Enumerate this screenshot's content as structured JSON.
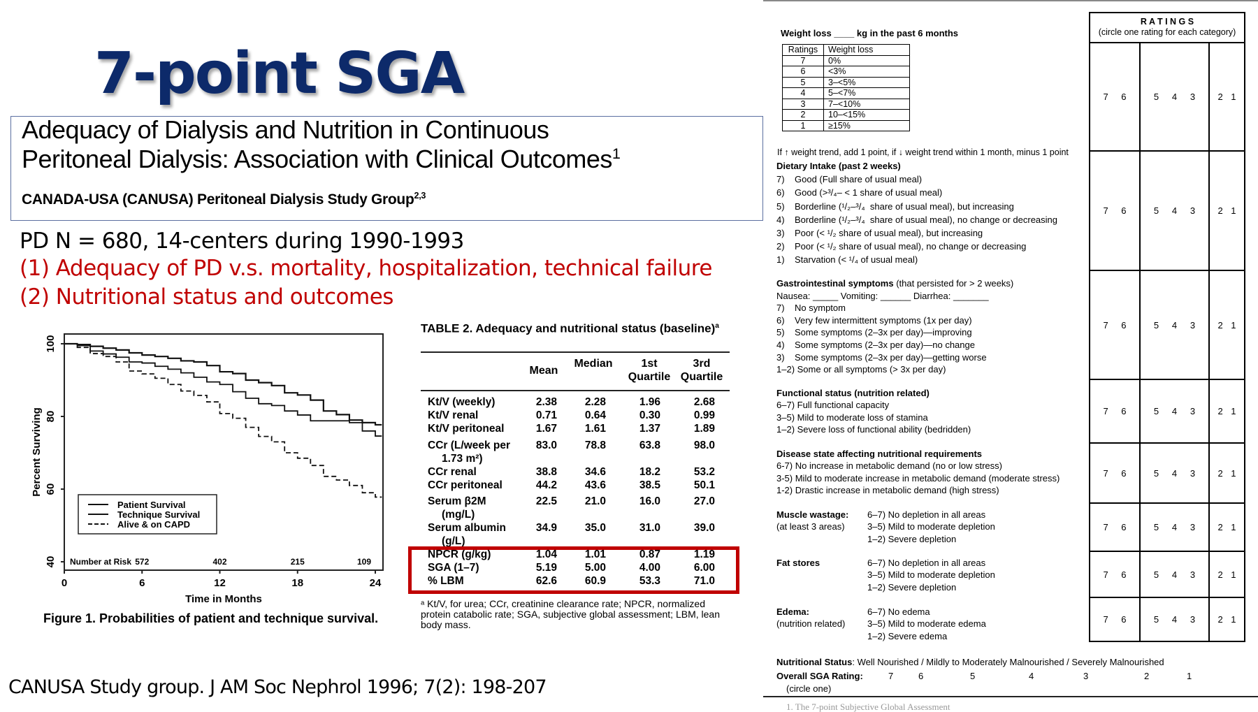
{
  "slide_title": "7-point SGA",
  "paper": {
    "title_line1": "Adequacy of Dialysis and Nutrition in Continuous",
    "title_line2": "Peritoneal Dialysis: Association with Clinical Outcomes",
    "title_sup": "1",
    "authors": "CANADA-USA (CANUSA) Peritoneal Dialysis Study Group",
    "authors_sup": "2,3"
  },
  "bullets": {
    "study": "PD N = 680, 14-centers during 1990-1993",
    "aim1": "(1)  Adequacy of PD v.s. mortality, hospitalization, technical failure",
    "aim2": "(2) Nutritional status and outcomes"
  },
  "colors": {
    "title": "#0d2a6a",
    "highlight": "#c00000"
  },
  "citation": "CANUSA Study group. J AM Soc Nephrol 1996; 7(2): 198-207",
  "chart_data": {
    "type": "line",
    "title": "",
    "caption": "Figure 1. Probabilities of patient and technique survival.",
    "xlabel": "Time in Months",
    "ylabel": "Percent Surviving",
    "xlim": [
      0,
      24.5
    ],
    "ylim": [
      40,
      100
    ],
    "xticks": [
      0,
      6,
      12,
      18,
      24
    ],
    "yticks": [
      40,
      60,
      80,
      100
    ],
    "legend_position": "lower-left",
    "number_at_risk_label": "Number at Risk",
    "number_at_risk": [
      {
        "x": 6,
        "n": "572"
      },
      {
        "x": 12,
        "n": "402"
      },
      {
        "x": 18,
        "n": "215"
      },
      {
        "x": 24,
        "n": "109"
      }
    ],
    "series": [
      {
        "name": "Patient Survival",
        "style": "solid",
        "x": [
          0,
          1,
          2,
          3,
          4,
          5,
          6,
          7,
          8,
          9,
          10,
          11,
          12,
          13,
          14,
          15,
          16,
          17,
          18,
          19,
          20,
          21,
          22,
          23,
          24,
          24.5
        ],
        "y": [
          100,
          99.8,
          99.3,
          98.8,
          98.3,
          97.5,
          96.9,
          96.5,
          96,
          95.3,
          95,
          94,
          92.3,
          91.8,
          90,
          89.3,
          88.5,
          86.5,
          85.9,
          84.5,
          81.5,
          80.5,
          79,
          78.3,
          77.7,
          77.7
        ]
      },
      {
        "name": "Technique Survival",
        "style": "solid",
        "x": [
          0,
          1,
          2,
          3,
          4,
          5,
          6,
          7,
          8,
          9,
          10,
          11,
          12,
          13,
          14,
          15,
          16,
          17,
          18,
          19,
          20,
          21,
          22,
          23,
          24,
          24.5
        ],
        "y": [
          100,
          99.5,
          98,
          97.2,
          96.3,
          95,
          94.7,
          93.8,
          93,
          92,
          90.8,
          89.5,
          88.8,
          86.8,
          85,
          83.5,
          83,
          81.5,
          80.4,
          78.8,
          78.8,
          78.8,
          78.3,
          76,
          74.6,
          74.6
        ]
      },
      {
        "name": "Alive & on CAPD",
        "style": "dashed",
        "x": [
          0,
          1,
          2,
          3,
          4,
          5,
          6,
          7,
          8,
          9,
          10,
          11,
          12,
          13,
          14,
          15,
          16,
          17,
          18,
          19,
          20,
          21,
          22,
          23,
          24,
          24.5
        ],
        "y": [
          100,
          99,
          97.3,
          96.5,
          95,
          92.5,
          91.7,
          90.5,
          88.8,
          87,
          85.8,
          84,
          80.8,
          79.5,
          77,
          74.5,
          73,
          70,
          68.5,
          66.5,
          63.5,
          62.5,
          61,
          59,
          57.8,
          57.8
        ]
      }
    ]
  },
  "table2": {
    "title": "TABLE 2. Adequacy and nutritional status (baseline)",
    "title_sup": "a",
    "headers": [
      "Mean",
      "Median",
      "1st Quartile",
      "3rd Quartile"
    ],
    "rows": [
      {
        "label": "Kt/V (weekly)",
        "values": [
          "2.38",
          "2.28",
          "1.96",
          "2.68"
        ]
      },
      {
        "label": "Kt/V renal",
        "values": [
          "0.71",
          "0.64",
          "0.30",
          "0.99"
        ]
      },
      {
        "label": "Kt/V peritoneal",
        "values": [
          "1.67",
          "1.61",
          "1.37",
          "1.89"
        ]
      },
      {
        "label": "CCr (L/week per",
        "label2": "1.73 m²)",
        "values": [
          "83.0",
          "78.8",
          "63.8",
          "98.0"
        ]
      },
      {
        "label": "CCr renal",
        "values": [
          "38.8",
          "34.6",
          "18.2",
          "53.2"
        ]
      },
      {
        "label": "CCr peritoneal",
        "values": [
          "44.2",
          "43.6",
          "38.5",
          "50.1"
        ]
      },
      {
        "label": "Serum β2M",
        "label2": "(mg/L)",
        "values": [
          "22.5",
          "21.0",
          "16.0",
          "27.0"
        ]
      },
      {
        "label": "Serum albumin",
        "label2": "(g/L)",
        "values": [
          "34.9",
          "35.0",
          "31.0",
          "39.0"
        ]
      },
      {
        "label": "NPCR (g/kg)",
        "values": [
          "1.04",
          "1.01",
          "0.87",
          "1.19"
        ],
        "highlighted": true
      },
      {
        "label": "SGA (1–7)",
        "values": [
          "5.19",
          "5.00",
          "4.00",
          "6.00"
        ],
        "highlighted": true
      },
      {
        "label": "% LBM",
        "values": [
          "62.6",
          "60.9",
          "53.3",
          "71.0"
        ],
        "highlighted": true
      }
    ],
    "footnote": "ᵃ Kt/V, for urea; CCr, creatinine clearance rate; NPCR, normalized protein catabolic rate; SGA, subjective global assessment; LBM, lean body mass."
  },
  "sga_form": {
    "weight_loss_heading": "Weight loss ____ kg in the past 6 months",
    "weight_table": {
      "headers": [
        "Ratings",
        "Weight loss"
      ],
      "rows": [
        [
          "7",
          "0%"
        ],
        [
          "6",
          "<3%"
        ],
        [
          "5",
          "3–<5%"
        ],
        [
          "4",
          "5–<7%"
        ],
        [
          "3",
          "7–<10%"
        ],
        [
          "2",
          "10–<15%"
        ],
        [
          "1",
          "≥15%"
        ]
      ]
    },
    "weight_trend_note": "If ↑ weight trend, add 1 point, if ↓ weight trend within 1 month, minus 1 point",
    "dietary": {
      "heading": "Dietary Intake (past 2 weeks)",
      "items": [
        "7)    Good (Full share of usual meal)",
        "6)    Good (>³/₄– < 1 share of usual meal)",
        "5)    Borderline (¹/₂–³/₄  share of usual meal), but increasing",
        "4)    Borderline (¹/₂–³/₄  share of usual meal), no change or decreasing",
        "3)    Poor (< ¹/₂ share of usual meal), but increasing",
        "2)    Poor (< ¹/₂ share of usual meal), no change or decreasing",
        "1)    Starvation (< ¹/₄ of usual meal)"
      ]
    },
    "gi": {
      "heading": "Gastrointestinal symptoms",
      "heading_rest": " (that persisted for > 2 weeks)",
      "fields": "Nausea: _____    Vomiting: ______   Diarrhea: _______",
      "items": [
        "7)    No symptom",
        "6)    Very few intermittent symptoms (1x per day)",
        "5)    Some symptoms (2–3x per day)—improving",
        "4)    Some symptoms (2–3x per day)—no change",
        "3)    Some symptoms (2–3x per day)—getting worse",
        "1–2) Some or all symptoms (> 3x per day)"
      ]
    },
    "functional": {
      "heading": "Functional status (nutrition related)",
      "items": [
        "6–7) Full functional capacity",
        "3–5) Mild to moderate loss of stamina",
        "1–2) Severe loss of functional ability (bedridden)"
      ]
    },
    "disease": {
      "heading": "Disease state affecting nutritional requirements",
      "items": [
        "6-7) No increase in metabolic demand (no or low stress)",
        "3-5) Mild to moderate increase in metabolic demand (moderate stress)",
        "1-2) Drastic increase in metabolic demand (high stress)"
      ]
    },
    "muscle": {
      "label": "Muscle wastage:",
      "sublabel": "(at least 3 areas)",
      "items": [
        "6–7) No depletion in all areas",
        "3–5) Mild to moderate depletion",
        "1–2) Severe depletion"
      ]
    },
    "fat": {
      "label": "Fat stores",
      "sublabel": "",
      "items": [
        "6–7) No depletion in all areas",
        "3–5) Mild to moderate depletion",
        "1–2) Severe depletion"
      ]
    },
    "edema": {
      "label": "Edema:",
      "sublabel": "(nutrition related)",
      "items": [
        "6–7) No edema",
        "3–5) Mild to moderate edema",
        "1–2) Severe edema"
      ]
    },
    "ratings": {
      "title": "R A T I N G S",
      "subtitle": "(circle one rating for each category)",
      "groups": [
        [
          "7",
          "6"
        ],
        [
          "5",
          "4",
          "3"
        ],
        [
          "2",
          "1"
        ]
      ]
    },
    "nutritional_status_label": "Nutritional Status",
    "nutritional_status_options": ":   Well Nourished  /  Mildly to Moderately Malnourished /  Severely Malnourished",
    "overall_label": "Overall SGA Rating:",
    "overall_values": [
      "7",
      "6",
      "5",
      "4",
      "3",
      "2",
      "1"
    ],
    "circle_one": "(circle one)",
    "footnote": "1. The 7-point Subjective Global Assessment"
  }
}
